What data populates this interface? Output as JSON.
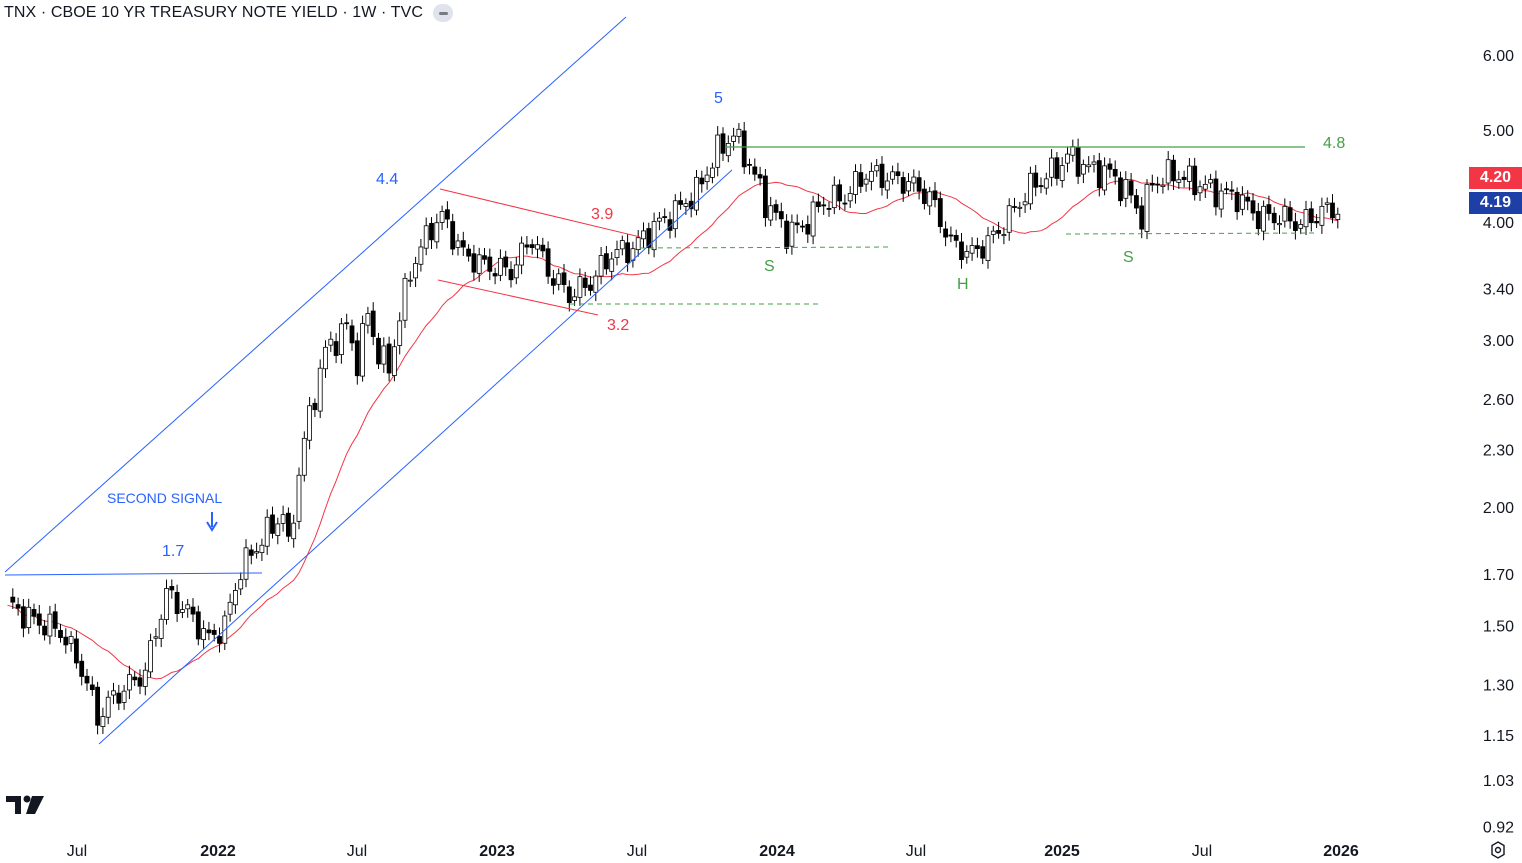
{
  "header": {
    "title": "TNX · CBOE 10 YR TREASURY NOTE YIELD · 1W · TVC"
  },
  "price_tags": {
    "current_red": "4.20",
    "current_blue": "4.19"
  },
  "colors": {
    "up": "#ffffff",
    "down": "#000000",
    "ma": "#f23645",
    "channel": "#2962ff",
    "pattern": "#43a047",
    "wedge": "#f23645"
  },
  "chart_data": {
    "type": "candlestick",
    "title": "TNX · CBOE 10 YR TREASURY NOTE YIELD · 1W · TVC",
    "y_scale": "log",
    "y_ticks": [
      "6.00",
      "5.00",
      "4.00",
      "3.40",
      "3.00",
      "2.60",
      "2.30",
      "2.00",
      "1.70",
      "1.50",
      "1.30",
      "1.15",
      "1.03",
      "0.92"
    ],
    "x_ticks": [
      "Jul",
      "2022",
      "Jul",
      "2023",
      "Jul",
      "2024",
      "Jul",
      "2025",
      "Jul",
      "2026"
    ],
    "annotations": {
      "channel_top_label": "4.4",
      "peak_label": "5",
      "neckline_label": "4.8",
      "wedge_upper_label": "3.9",
      "wedge_lower_label": "3.2",
      "breakout_label": "1.7",
      "signal_label": "SECOND SIGNAL",
      "left_shoulder": "S",
      "head": "H",
      "right_shoulder": "S"
    },
    "moving_average": {
      "name": "MA",
      "color": "#f23645"
    },
    "anchors": [
      [
        0,
        1.58
      ],
      [
        5,
        1.52
      ],
      [
        10,
        1.48
      ],
      [
        14,
        1.35
      ],
      [
        17,
        1.2
      ],
      [
        20,
        1.26
      ],
      [
        26,
        1.34
      ],
      [
        30,
        1.62
      ],
      [
        34,
        1.55
      ],
      [
        38,
        1.45
      ],
      [
        41,
        1.5
      ],
      [
        44,
        1.72
      ],
      [
        48,
        1.85
      ],
      [
        52,
        1.97
      ],
      [
        53,
        1.8
      ],
      [
        56,
        2.35
      ],
      [
        60,
        2.92
      ],
      [
        64,
        3.1
      ],
      [
        66,
        2.85
      ],
      [
        68,
        3.2
      ],
      [
        70,
        2.9
      ],
      [
        72,
        2.8
      ],
      [
        76,
        3.55
      ],
      [
        80,
        3.95
      ],
      [
        82,
        4.05
      ],
      [
        86,
        3.7
      ],
      [
        90,
        3.6
      ],
      [
        95,
        3.55
      ],
      [
        99,
        3.85
      ],
      [
        102,
        3.55
      ],
      [
        106,
        3.35
      ],
      [
        110,
        3.45
      ],
      [
        114,
        3.7
      ],
      [
        118,
        3.75
      ],
      [
        122,
        3.95
      ],
      [
        126,
        4.1
      ],
      [
        130,
        4.3
      ],
      [
        134,
        4.75
      ],
      [
        137,
        4.95
      ],
      [
        140,
        4.6
      ],
      [
        143,
        4.2
      ],
      [
        147,
        3.9
      ],
      [
        150,
        3.95
      ],
      [
        154,
        4.2
      ],
      [
        158,
        4.25
      ],
      [
        162,
        4.5
      ],
      [
        166,
        4.45
      ],
      [
        170,
        4.4
      ],
      [
        174,
        4.25
      ],
      [
        178,
        3.8
      ],
      [
        182,
        3.7
      ],
      [
        186,
        3.85
      ],
      [
        189,
        4.05
      ],
      [
        193,
        4.35
      ],
      [
        198,
        4.55
      ],
      [
        200,
        4.7
      ],
      [
        204,
        4.55
      ],
      [
        208,
        4.5
      ],
      [
        212,
        4.25
      ],
      [
        214,
        4.05
      ],
      [
        216,
        4.4
      ],
      [
        220,
        4.5
      ],
      [
        224,
        4.4
      ],
      [
        228,
        4.3
      ],
      [
        232,
        4.25
      ],
      [
        236,
        4.05
      ],
      [
        240,
        4.05
      ],
      [
        244,
        3.98
      ],
      [
        248,
        4.1
      ],
      [
        251,
        4.13
      ]
    ]
  }
}
